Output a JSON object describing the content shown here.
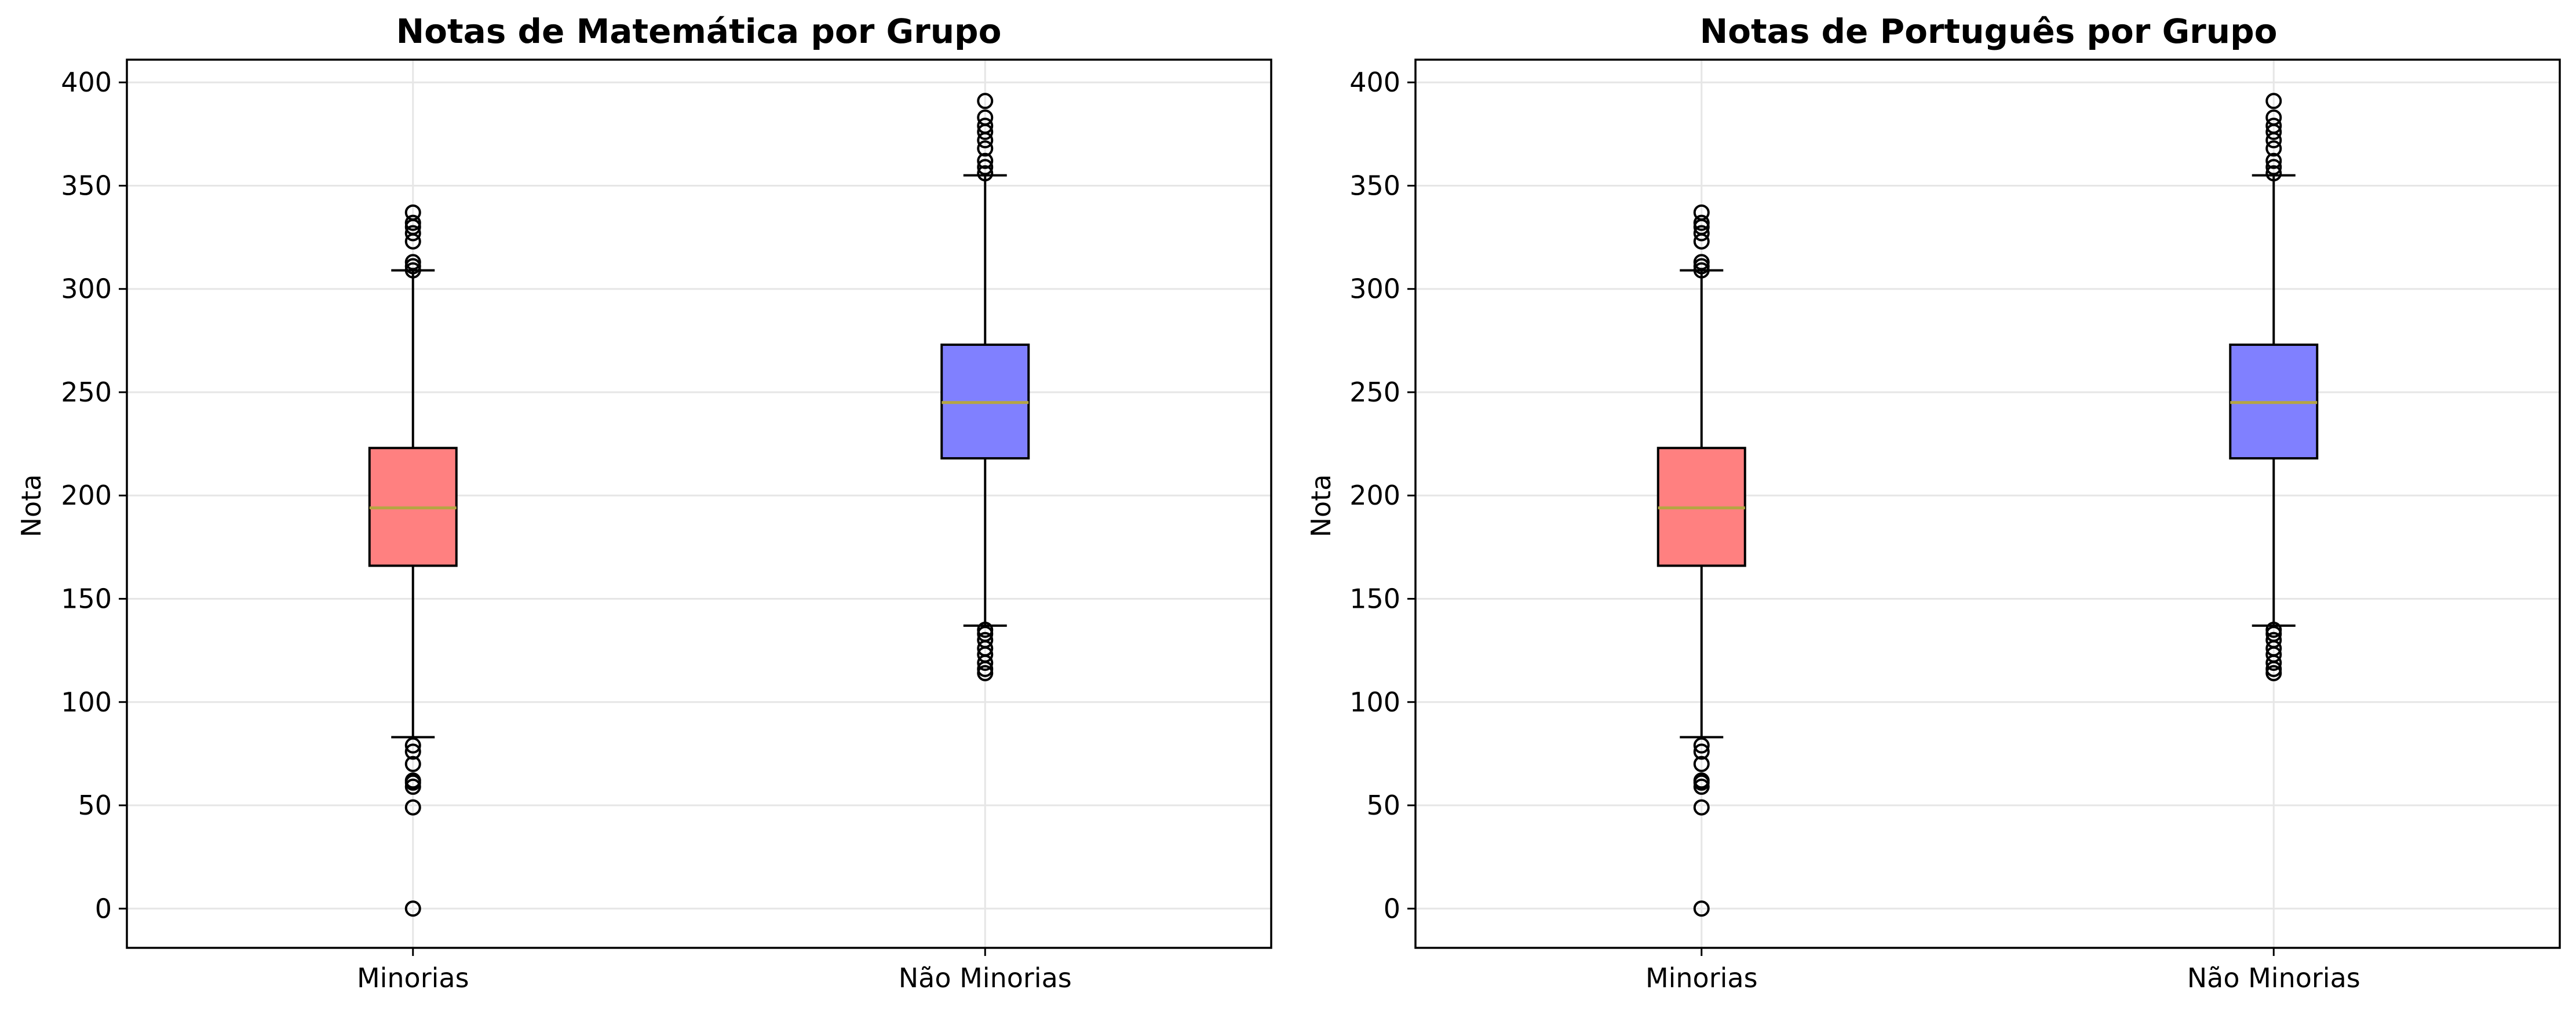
{
  "chart_data": [
    {
      "type": "box",
      "title": "Notas de Matemática por Grupo",
      "xlabel": "",
      "ylabel": "Nota",
      "categories": [
        "Minorias",
        "Não Minorias"
      ],
      "ylim": [
        -19,
        411
      ],
      "yticks": [
        0,
        50,
        100,
        150,
        200,
        250,
        300,
        350,
        400
      ],
      "grid": true,
      "boxes": [
        {
          "category": "Minorias",
          "whisker_low": 83,
          "q1": 166,
          "median": 194,
          "q3": 223,
          "whisker_high": 309,
          "color": "#ff8080",
          "outliers": [
            0,
            49,
            59,
            61,
            62,
            70,
            76,
            79,
            309,
            311,
            313,
            323,
            327,
            330,
            332,
            337
          ]
        },
        {
          "category": "Não Minorias",
          "whisker_low": 137,
          "q1": 218,
          "median": 245,
          "q3": 273,
          "whisker_high": 355,
          "color": "#8080ff",
          "outliers": [
            114,
            116,
            119,
            123,
            126,
            130,
            133,
            135,
            356,
            359,
            362,
            368,
            372,
            376,
            379,
            383,
            391
          ]
        }
      ],
      "median_color": "#b5a642"
    },
    {
      "type": "box",
      "title": "Notas de Português por Grupo",
      "xlabel": "",
      "ylabel": "Nota",
      "categories": [
        "Minorias",
        "Não Minorias"
      ],
      "ylim": [
        -19,
        411
      ],
      "yticks": [
        0,
        50,
        100,
        150,
        200,
        250,
        300,
        350,
        400
      ],
      "grid": true,
      "boxes": [
        {
          "category": "Minorias",
          "whisker_low": 83,
          "q1": 166,
          "median": 194,
          "q3": 223,
          "whisker_high": 309,
          "color": "#ff8080",
          "outliers": [
            0,
            49,
            59,
            61,
            62,
            70,
            76,
            79,
            309,
            311,
            313,
            323,
            327,
            330,
            332,
            337
          ]
        },
        {
          "category": "Não Minorias",
          "whisker_low": 137,
          "q1": 218,
          "median": 245,
          "q3": 273,
          "whisker_high": 355,
          "color": "#8080ff",
          "outliers": [
            114,
            116,
            119,
            123,
            126,
            130,
            133,
            135,
            356,
            359,
            362,
            368,
            372,
            376,
            379,
            383,
            391
          ]
        }
      ],
      "median_color": "#b5a642"
    }
  ]
}
